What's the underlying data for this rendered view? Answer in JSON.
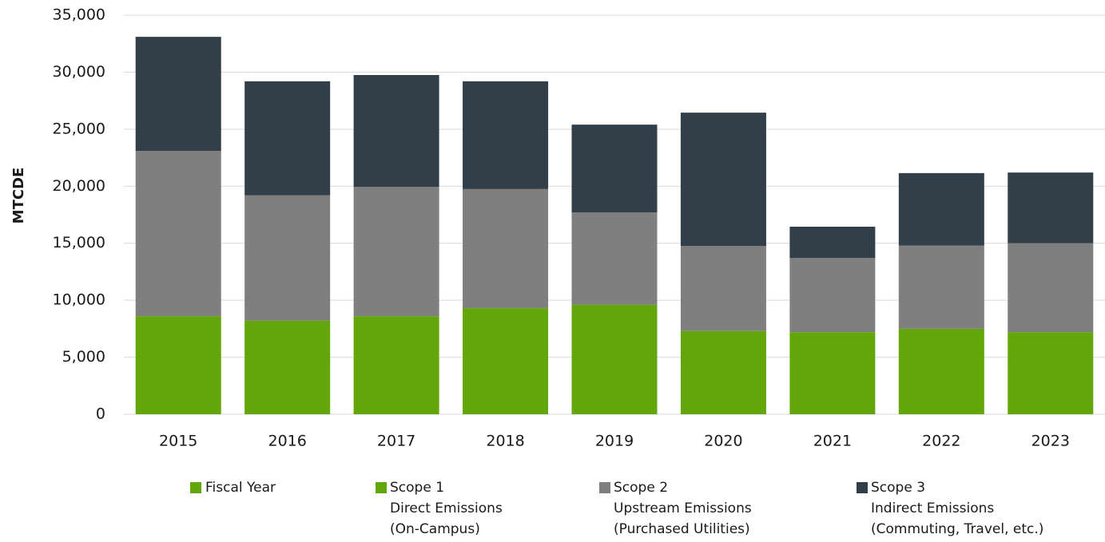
{
  "chart_data": {
    "type": "stacked_bar",
    "ylabel": "MTCDE",
    "xlabel": "Fiscal Year",
    "xlabel_color": "#62a60a",
    "categories": [
      "2015",
      "2016",
      "2017",
      "2018",
      "2019",
      "2020",
      "2021",
      "2022",
      "2023"
    ],
    "series": [
      {
        "name": "Scope 1",
        "description": [
          "Direct Emissions",
          "(On-Campus)"
        ],
        "color": "#62a60a",
        "values": [
          8600,
          8200,
          8600,
          9300,
          9600,
          7300,
          7200,
          7500,
          7200
        ]
      },
      {
        "name": "Scope 2",
        "description": [
          "Upstream Emissions",
          "(Purchased Utilities)"
        ],
        "color": "#7f7f7f",
        "values": [
          14500,
          11000,
          11350,
          10450,
          8100,
          7450,
          6500,
          7300,
          7800
        ]
      },
      {
        "name": "Scope 3",
        "description": [
          "Indirect Emissions",
          "(Commuting, Travel, etc.)"
        ],
        "color": "#323e48",
        "values": [
          10000,
          10000,
          9800,
          9450,
          7700,
          11700,
          2750,
          6350,
          6200
        ]
      }
    ],
    "ylim": [
      0,
      35000
    ],
    "yticks": [
      0,
      {
        "value": 5000,
        "label": "5,000"
      },
      {
        "value": 10000,
        "label": "10,000"
      },
      {
        "value": 15000,
        "label": "15,000"
      },
      {
        "value": 20000,
        "label": "20,000"
      },
      {
        "value": 25000,
        "label": "25,000"
      },
      {
        "value": 30000,
        "label": "30,000"
      },
      {
        "value": 35000,
        "label": "35,000"
      }
    ],
    "grid": true
  }
}
